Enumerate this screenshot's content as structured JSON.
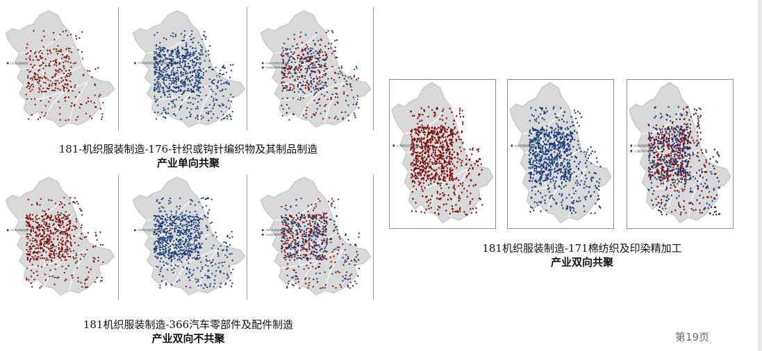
{
  "colors": {
    "region_fill": "#d9d9d9",
    "region_stroke": "#ffffff",
    "red_points": "#7a1010",
    "blue_points": "#1f3f7a"
  },
  "maps": [
    {
      "id": "g1-a",
      "dots": "red",
      "density": 0.35,
      "legend": [
        "181机织服装制造"
      ]
    },
    {
      "id": "g1-b",
      "dots": "blue",
      "density": 0.9,
      "legend": [
        "176针织或钩针编织物及其制品制造"
      ]
    },
    {
      "id": "g1-c",
      "dots": "both",
      "density": 0.6,
      "legend": [
        "176针织或钩针编织物",
        "181机织服装制造"
      ]
    },
    {
      "id": "g2-a",
      "dots": "red",
      "density": 0.7,
      "legend": [
        "181机织服装制造"
      ]
    },
    {
      "id": "g2-b",
      "dots": "blue",
      "density": 0.9,
      "legend": [
        "366汽车零部件及配件制造"
      ]
    },
    {
      "id": "g2-c",
      "dots": "both",
      "density": 0.8,
      "legend": [
        "366汽车零部件及配件制造",
        "181机织服装制造"
      ]
    },
    {
      "id": "g3-a",
      "dots": "red",
      "density": 1.0,
      "legend": [
        "171棉纺织及印染精加工"
      ]
    },
    {
      "id": "g3-b",
      "dots": "blue",
      "density": 1.0,
      "legend": [
        "181机织服装制造"
      ]
    },
    {
      "id": "g3-c",
      "dots": "both",
      "density": 1.0,
      "legend": [
        "181机织服装制造",
        "171棉纺织及印染精加工"
      ]
    }
  ],
  "captions": {
    "group1": {
      "line1": "181-机织服装制造-176-针织或钩针编织物及其制品制造",
      "line2": "产业单向共聚"
    },
    "group2": {
      "line1": "181机织服装制造-366汽车零部件及配件制造",
      "line2": "产业双向不共聚"
    },
    "group3": {
      "line1": "181机织服装制造-171棉纺织及印染精加工",
      "line2": "产业双向共聚"
    }
  },
  "page_number": "第19页"
}
